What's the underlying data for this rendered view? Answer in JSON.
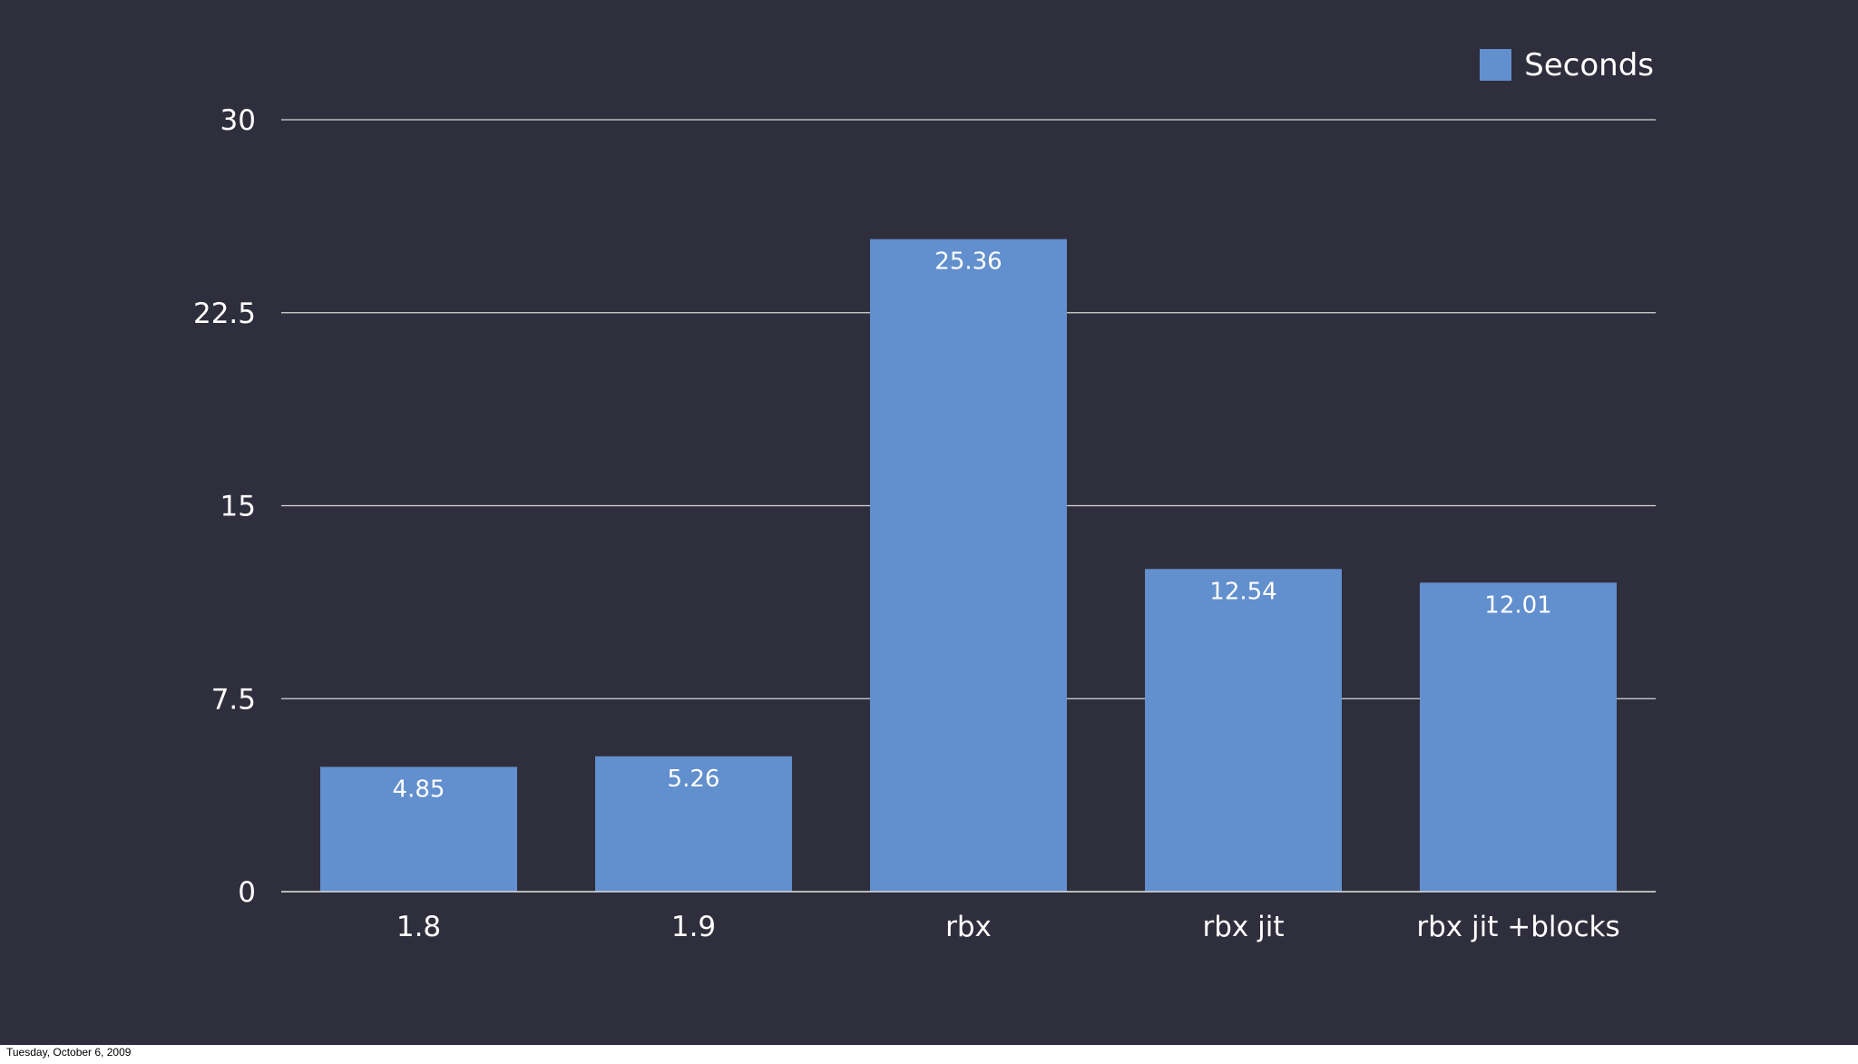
{
  "footer": {
    "date": "Tuesday, October 6, 2009"
  },
  "colors": {
    "background": "#2f2e3c",
    "bar": "#628fcd",
    "gridline": "#d8d8d8",
    "text": "#ffffff"
  },
  "chart_data": {
    "type": "bar",
    "categories": [
      "1.8",
      "1.9",
      "rbx",
      "rbx jit",
      "rbx jit +blocks"
    ],
    "series": [
      {
        "name": "Seconds",
        "values": [
          4.85,
          5.26,
          25.36,
          12.54,
          12.01
        ],
        "value_labels": [
          "4.85",
          "5.26",
          "25.36",
          "12.54",
          "12.01"
        ]
      }
    ],
    "title": "",
    "xlabel": "",
    "ylabel": "",
    "ylim": [
      0,
      30
    ],
    "yticks": [
      0,
      7.5,
      15,
      22.5,
      30
    ],
    "ytick_labels": [
      "0",
      "7.5",
      "15",
      "22.5",
      "30"
    ],
    "grid": true,
    "legend_position": "top-right",
    "data_labels_inside_bars": true
  }
}
